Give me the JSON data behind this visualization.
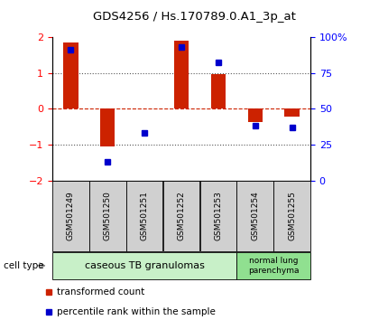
{
  "title": "GDS4256 / Hs.170789.0.A1_3p_at",
  "samples": [
    "GSM501249",
    "GSM501250",
    "GSM501251",
    "GSM501252",
    "GSM501253",
    "GSM501254",
    "GSM501255"
  ],
  "red_values": [
    1.85,
    -1.05,
    0.02,
    1.9,
    0.97,
    -0.38,
    -0.22
  ],
  "blue_values": [
    91,
    13,
    33,
    93,
    82,
    38,
    37
  ],
  "ylim_left": [
    -2,
    2
  ],
  "ylim_right": [
    0,
    100
  ],
  "yticks_left": [
    -2,
    -1,
    0,
    1,
    2
  ],
  "yticks_right": [
    0,
    25,
    50,
    75,
    100
  ],
  "ytick_labels_right": [
    "0",
    "25",
    "50",
    "75",
    "100%"
  ],
  "cell_type_groups": [
    {
      "label": "caseous TB granulomas",
      "n_samples": 5,
      "color": "#c8f0c8"
    },
    {
      "label": "normal lung\nparenchyma",
      "n_samples": 2,
      "color": "#90e090"
    }
  ],
  "cell_type_label": "cell type",
  "legend_red": "transformed count",
  "legend_blue": "percentile rank within the sample",
  "bar_color": "#cc2200",
  "dot_color": "#0000cc",
  "hline_color": "#cc2200",
  "dotted_color": "#555555",
  "bg_color": "#ffffff",
  "sample_box_color": "#d0d0d0"
}
